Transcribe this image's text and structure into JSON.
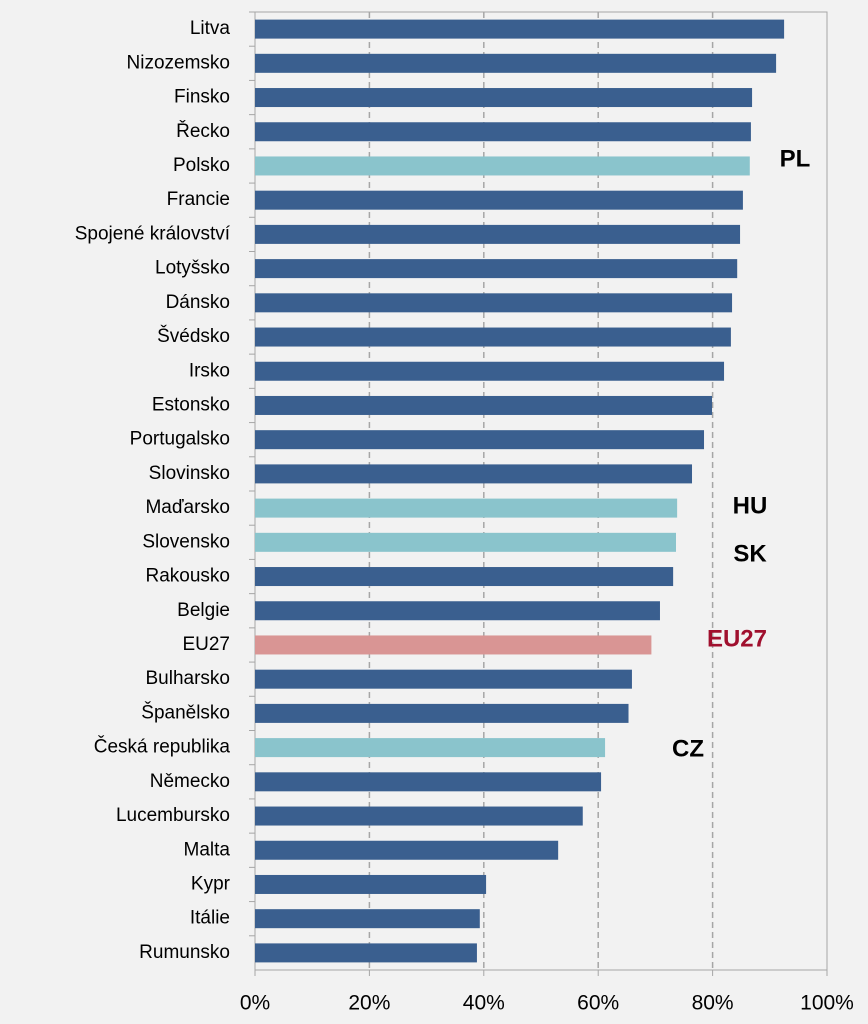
{
  "chart_data": {
    "type": "bar",
    "orientation": "horizontal",
    "categories": [
      "Litva",
      "Nizozemsko",
      "Finsko",
      "Řecko",
      "Polsko",
      "Francie",
      "Spojené království",
      "Lotyšsko",
      "Dánsko",
      "Švédsko",
      "Irsko",
      "Estonsko",
      "Portugalsko",
      "Slovinsko",
      "Maďarsko",
      "Slovensko",
      "Rakousko",
      "Belgie",
      "EU27",
      "Bulharsko",
      "Španělsko",
      "Česká republika",
      "Německo",
      "Lucembursko",
      "Malta",
      "Kypr",
      "Itálie",
      "Rumunsko"
    ],
    "values": [
      92.5,
      91.1,
      86.9,
      86.7,
      86.5,
      85.3,
      84.8,
      84.3,
      83.4,
      83.2,
      82.0,
      79.9,
      78.5,
      76.4,
      73.8,
      73.6,
      73.1,
      70.8,
      69.3,
      65.9,
      65.3,
      61.2,
      60.5,
      57.3,
      53.0,
      40.4,
      39.3,
      38.8
    ],
    "colors": [
      "#3a5f8f",
      "#3a5f8f",
      "#3a5f8f",
      "#3a5f8f",
      "#8ac4cc",
      "#3a5f8f",
      "#3a5f8f",
      "#3a5f8f",
      "#3a5f8f",
      "#3a5f8f",
      "#3a5f8f",
      "#3a5f8f",
      "#3a5f8f",
      "#3a5f8f",
      "#8ac4cc",
      "#8ac4cc",
      "#3a5f8f",
      "#3a5f8f",
      "#d99594",
      "#3a5f8f",
      "#3a5f8f",
      "#8ac4cc",
      "#3a5f8f",
      "#3a5f8f",
      "#3a5f8f",
      "#3a5f8f",
      "#3a5f8f",
      "#3a5f8f"
    ],
    "xlim": [
      0,
      100
    ],
    "xticks": [
      {
        "value": 0,
        "label": "0%"
      },
      {
        "value": 20,
        "label": "20%"
      },
      {
        "value": 40,
        "label": "40%"
      },
      {
        "value": 60,
        "label": "60%"
      },
      {
        "value": 80,
        "label": "80%"
      },
      {
        "value": 100,
        "label": "100%"
      }
    ],
    "grid": true,
    "annotations": [
      {
        "text": "PL",
        "color": "#000000"
      },
      {
        "text": "HU",
        "color": "#000000"
      },
      {
        "text": "SK",
        "color": "#000000"
      },
      {
        "text": "EU27",
        "color": "#a0102e"
      },
      {
        "text": "CZ",
        "color": "#000000"
      }
    ]
  }
}
